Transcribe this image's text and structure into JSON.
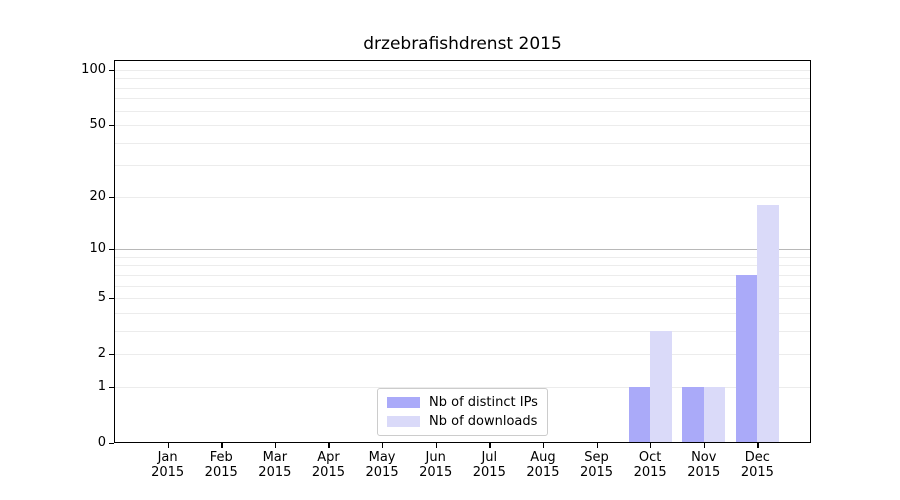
{
  "chart_data": {
    "type": "bar",
    "title": "drzebrafishdrenst 2015",
    "months": [
      "Jan",
      "Feb",
      "Mar",
      "Apr",
      "May",
      "Jun",
      "Jul",
      "Aug",
      "Sep",
      "Oct",
      "Nov",
      "Dec"
    ],
    "year": "2015",
    "series": [
      {
        "name": "Nb of distinct IPs",
        "color": "#aaaaf9",
        "values": [
          0,
          0,
          0,
          0,
          0,
          0,
          0,
          0,
          0,
          1,
          1,
          7
        ]
      },
      {
        "name": "Nb of downloads",
        "color": "#dadaf9",
        "values": [
          0,
          0,
          0,
          0,
          0,
          0,
          0,
          0,
          0,
          3,
          1,
          18
        ]
      }
    ],
    "yscale": "log1p",
    "ylabel": "",
    "xlabel": "",
    "ytick_labels": [
      0,
      1,
      2,
      5,
      10,
      20,
      50,
      100
    ],
    "gridlines_minor": [
      1,
      2,
      3,
      4,
      5,
      6,
      7,
      8,
      9,
      20,
      30,
      40,
      50,
      60,
      70,
      80,
      90,
      100
    ],
    "gridlines_major": [
      10
    ],
    "ylim": [
      0,
      113
    ],
    "xlim": [
      -1,
      12
    ],
    "bar_width": 0.4,
    "legend_position": "lower center",
    "grid_color_minor": "#ececec",
    "grid_color_major": "#b8b8b8",
    "axis_color": "#000000"
  }
}
